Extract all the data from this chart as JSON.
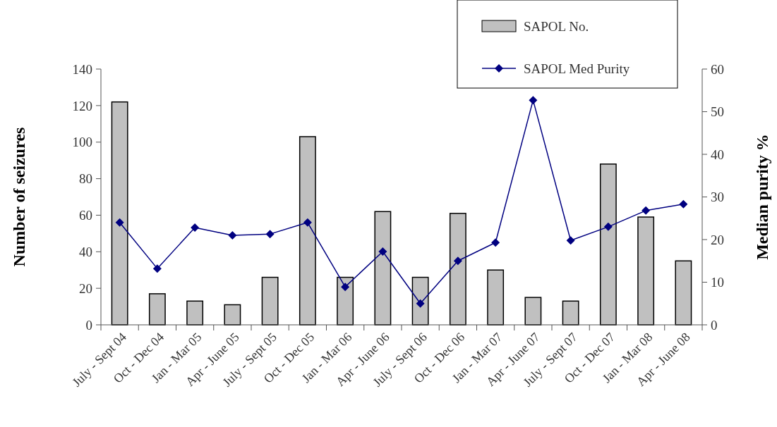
{
  "chart_data": {
    "type": "bar",
    "categories": [
      "July - Sept 04",
      "Oct - Dec 04",
      "Jan - Mar 05",
      "Apr - June 05",
      "July - Sept 05",
      "Oct - Dec 05",
      "Jan - Mar 06",
      "Apr - June 06",
      "July - Sept 06",
      "Oct - Dec 06",
      "Jan - Mar 07",
      "Apr - June 07",
      "July - Sept 07",
      "Oct - Dec 07",
      "Jan - Mar 08",
      "Apr - June 08"
    ],
    "series": [
      {
        "name": "SAPOL No.",
        "color": "#c0c0c0",
        "values": [
          122,
          17,
          13,
          11,
          26,
          103,
          26,
          62,
          26,
          61,
          30,
          15,
          13,
          88,
          59,
          35
        ]
      },
      {
        "name": "SAPOL Med Purity",
        "type": "line",
        "axis": "y2",
        "color": "#000080",
        "marker": "diamond",
        "values": [
          24,
          13.2,
          22.8,
          21,
          21.3,
          24,
          8.9,
          17.2,
          5,
          15,
          19.3,
          52.7,
          19.8,
          23,
          26.8,
          28.3
        ]
      }
    ],
    "ylabel": "Number of seizures",
    "y2label": "Median purity %",
    "ylim": [
      0,
      140
    ],
    "yticks": [
      0,
      20,
      40,
      60,
      80,
      100,
      120,
      140
    ],
    "y2lim": [
      0,
      60
    ],
    "y2ticks": [
      0,
      10,
      20,
      30,
      40,
      50,
      60
    ],
    "legend": "top right",
    "grid": false
  }
}
